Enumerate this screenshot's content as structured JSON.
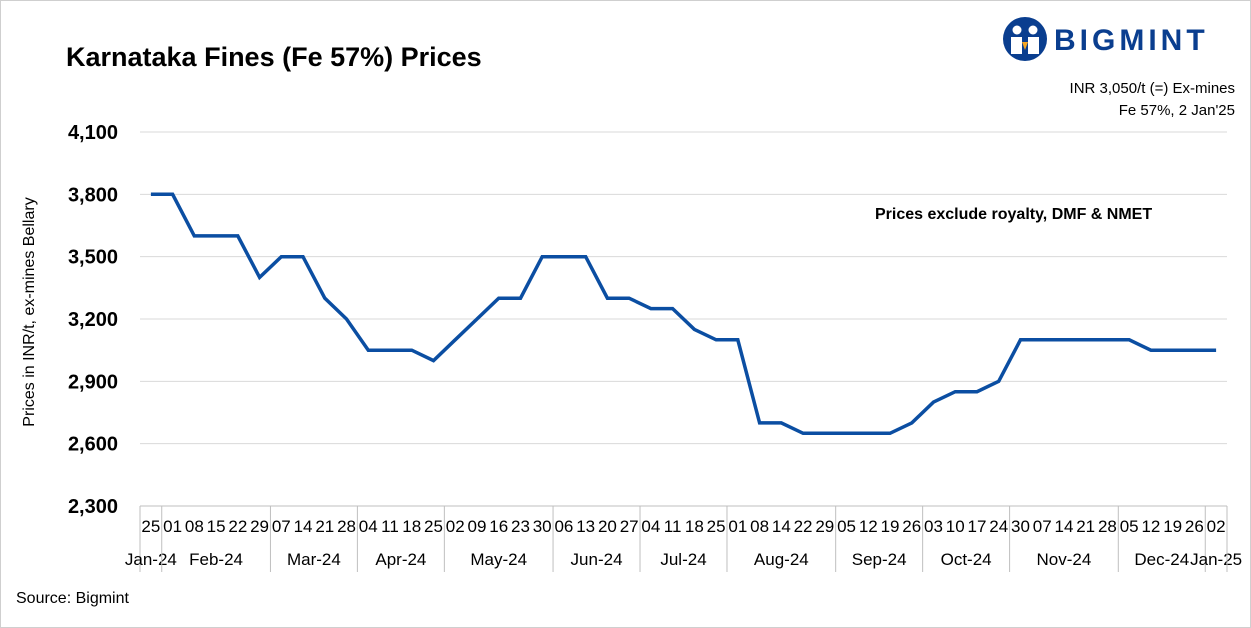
{
  "header": {
    "title": "Karnataka Fines (Fe 57%) Prices",
    "brand": "BIGMINT",
    "info_line1": "INR 3,050/t (=) Ex-mines",
    "info_line2": "Fe 57%, 2 Jan'25",
    "note": "Prices exclude royalty, DMF & NMET"
  },
  "footer": {
    "source": "Source: Bigmint"
  },
  "colors": {
    "line": "#0b4ea2",
    "brand": "#0a3e8f",
    "grid": "#d9d9d9"
  },
  "chart_data": {
    "type": "line",
    "ylabel": "Prices in INR/t, ex-mines Bellary",
    "ylim": [
      2300,
      4100
    ],
    "yticks": [
      2300,
      2600,
      2900,
      3200,
      3500,
      3800,
      4100
    ],
    "ytick_labels": [
      "2,300",
      "2,600",
      "2,900",
      "3,200",
      "3,500",
      "3,800",
      "4,100"
    ],
    "grid": true,
    "day_labels": [
      "25",
      "01",
      "08",
      "15",
      "22",
      "29",
      "07",
      "14",
      "21",
      "28",
      "04",
      "11",
      "18",
      "25",
      "02",
      "09",
      "16",
      "23",
      "30",
      "06",
      "13",
      "20",
      "27",
      "04",
      "11",
      "18",
      "25",
      "01",
      "08",
      "14",
      "22",
      "29",
      "05",
      "12",
      "19",
      "26",
      "03",
      "10",
      "17",
      "24",
      "30",
      "07",
      "14",
      "21",
      "28",
      "05",
      "12",
      "19",
      "26",
      "02"
    ],
    "month_groups": [
      {
        "label": "Jan-24",
        "count": 1
      },
      {
        "label": "Feb-24",
        "count": 5
      },
      {
        "label": "Mar-24",
        "count": 4
      },
      {
        "label": "Apr-24",
        "count": 4
      },
      {
        "label": "May-24",
        "count": 5
      },
      {
        "label": "Jun-24",
        "count": 4
      },
      {
        "label": "Jul-24",
        "count": 4
      },
      {
        "label": "Aug-24",
        "count": 5
      },
      {
        "label": "Sep-24",
        "count": 4
      },
      {
        "label": "Oct-24",
        "count": 4
      },
      {
        "label": "Nov-24",
        "count": 5
      },
      {
        "label": "Dec-24",
        "count": 4
      },
      {
        "label": "Jan-25",
        "count": 1
      }
    ],
    "series": [
      {
        "values": [
          3800,
          3800,
          3600,
          3600,
          3600,
          3400,
          3500,
          3500,
          3300,
          3200,
          3050,
          3050,
          3050,
          3000,
          3100,
          3200,
          3300,
          3300,
          3500,
          3500,
          3500,
          3300,
          3300,
          3250,
          3250,
          3150,
          3100,
          3100,
          2700,
          2700,
          2650,
          2650,
          2650,
          2650,
          2650,
          2700,
          2800,
          2850,
          2850,
          2900,
          3100,
          3100,
          3100,
          3100,
          3100,
          3100,
          3050,
          3050,
          3050,
          3050
        ]
      }
    ]
  }
}
